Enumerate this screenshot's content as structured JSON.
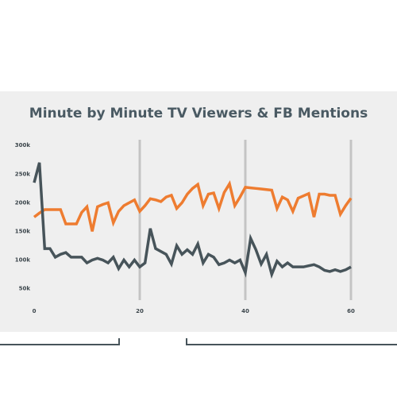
{
  "chart_data": {
    "type": "line",
    "title": "Minute by Minute TV Viewers & FB Mentions",
    "x": [
      0,
      1,
      2,
      3,
      4,
      5,
      6,
      7,
      8,
      9,
      10,
      11,
      12,
      13,
      14,
      15,
      16,
      17,
      18,
      19,
      20,
      21,
      22,
      23,
      24,
      25,
      26,
      27,
      28,
      29,
      30,
      31,
      32,
      33,
      34,
      35,
      36,
      37,
      38,
      39,
      40,
      41,
      42,
      43,
      44,
      45,
      46,
      47,
      48,
      49,
      50,
      51,
      52,
      53,
      54,
      55,
      56,
      57,
      58,
      59,
      60
    ],
    "series": [
      {
        "color": "#ee7c30",
        "values": [
          175000,
          182000,
          188000,
          188000,
          188000,
          188000,
          163000,
          163000,
          163000,
          183000,
          193000,
          150000,
          193000,
          197000,
          200000,
          165000,
          185000,
          195000,
          200000,
          205000,
          185000,
          195000,
          207000,
          205000,
          202000,
          210000,
          213000,
          190000,
          200000,
          215000,
          225000,
          232000,
          195000,
          215000,
          217000,
          190000,
          218000,
          233000,
          195000,
          210000,
          227000,
          226000,
          225000,
          224000,
          223000,
          222000,
          190000,
          210000,
          205000,
          185000,
          208000,
          212000,
          216000,
          175000,
          215000,
          215000,
          213000,
          213000,
          180000,
          195000,
          208000
        ]
      },
      {
        "color": "#47545a",
        "values": [
          235000,
          270000,
          120000,
          120000,
          105000,
          110000,
          113000,
          105000,
          105000,
          105000,
          95000,
          100000,
          103000,
          100000,
          95000,
          105000,
          85000,
          100000,
          88000,
          100000,
          88000,
          95000,
          155000,
          120000,
          115000,
          110000,
          93000,
          125000,
          110000,
          118000,
          110000,
          128000,
          95000,
          110000,
          105000,
          92000,
          95000,
          100000,
          95000,
          100000,
          78000,
          138000,
          118000,
          93000,
          110000,
          75000,
          98000,
          88000,
          95000,
          88000,
          88000,
          88000,
          90000,
          92000,
          88000,
          82000,
          80000,
          83000,
          80000,
          83000,
          88000
        ]
      }
    ],
    "xlim": [
      0,
      60
    ],
    "xticks": [
      0,
      20,
      40,
      60
    ],
    "ylim": [
      30000,
      310000
    ],
    "yticks": [
      {
        "value": 50000,
        "label": "50k"
      },
      {
        "value": 100000,
        "label": "100k"
      },
      {
        "value": 150000,
        "label": "150k"
      },
      {
        "value": 200000,
        "label": "200k"
      },
      {
        "value": 250000,
        "label": "250k"
      },
      {
        "value": 300000,
        "label": "300k"
      }
    ],
    "grid": true
  }
}
